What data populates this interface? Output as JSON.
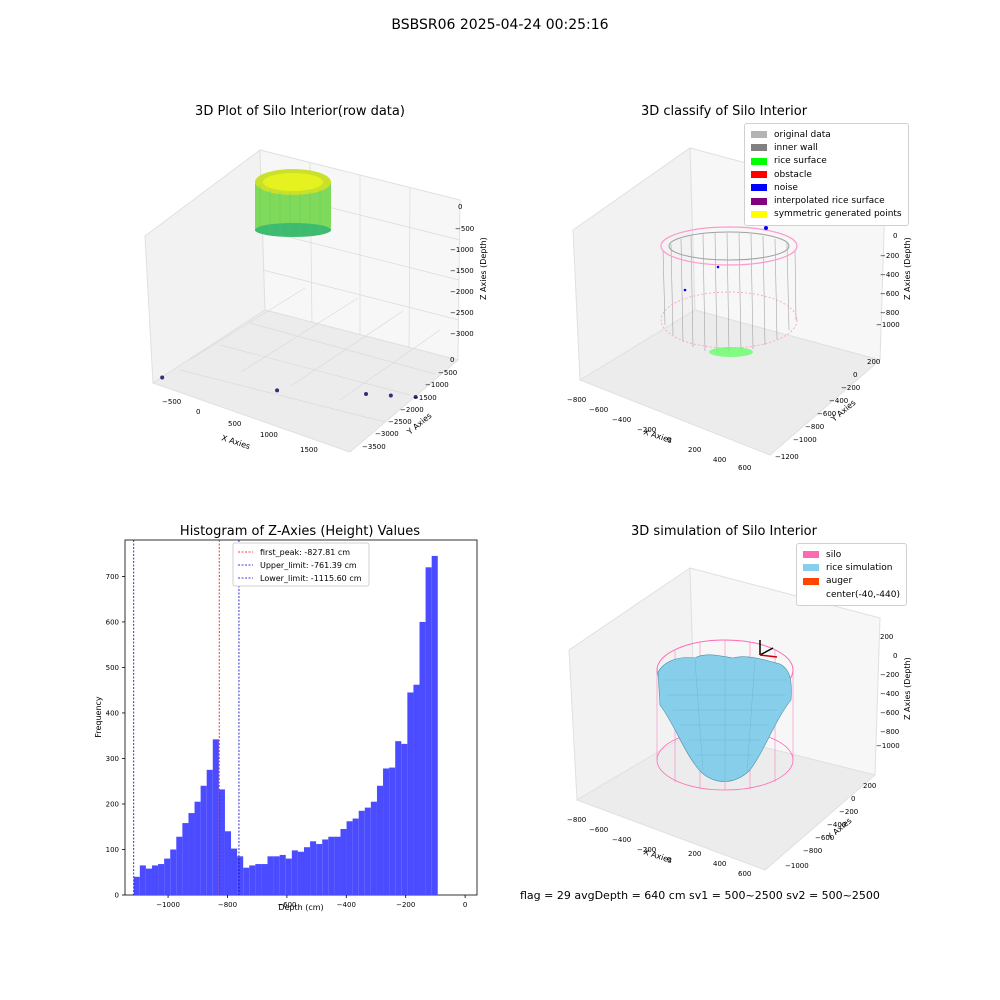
{
  "suptitle": "BSBSR06 2025-04-24 00:25:16",
  "colors": {
    "hist_bar": "#4b4bff",
    "peak_line": "#ff0000",
    "limit_line": "#0000cc",
    "grid": "#d9d9d9",
    "pane": "#f2f2f2"
  },
  "chart_data": [
    {
      "type": "scatter",
      "title": "3D Plot of Silo Interior(row data)",
      "xlabel": "X Axies",
      "ylabel": "Y Axies",
      "zlabel": "Z Axies (Depth)",
      "x_ticks": [
        "−500",
        "0",
        "500",
        "1000",
        "1500"
      ],
      "y_ticks": [
        "0",
        "−500",
        "−1000",
        "−1500",
        "−2000",
        "−2500",
        "−3000",
        "−3500"
      ],
      "z_ticks": [
        "0",
        "−500",
        "−1000",
        "−1500",
        "−2000",
        "−2500",
        "−3000"
      ],
      "points": [
        {
          "x": -590,
          "y": -300,
          "z": -3050
        },
        {
          "x": 400,
          "y": -1250,
          "z": -3050
        },
        {
          "x": 1100,
          "y": -2200,
          "z": -3050
        },
        {
          "x": 1300,
          "y": -2450,
          "z": -3050
        },
        {
          "x": 1500,
          "y": -2700,
          "z": -3050
        }
      ],
      "colormap": "viridis"
    },
    {
      "type": "scatter",
      "title": "3D classify of Silo Interior",
      "xlabel": "X Axies",
      "ylabel": "Y Axies",
      "zlabel": "Z Axies (Depth)",
      "x_ticks": [
        "−800",
        "−600",
        "−400",
        "−200",
        "0",
        "200",
        "400",
        "600"
      ],
      "y_ticks": [
        "200",
        "0",
        "−200",
        "−400",
        "−600",
        "−800",
        "−1000",
        "−1200"
      ],
      "z_ticks": [
        "200",
        "0",
        "−200",
        "−400",
        "−600",
        "−800",
        "−1000"
      ],
      "legend": [
        {
          "label": "original data",
          "color": "#b3b3b3"
        },
        {
          "label": "inner wall",
          "color": "#808080"
        },
        {
          "label": "rice surface",
          "color": "#00ff00"
        },
        {
          "label": "obstacle",
          "color": "#ff0000"
        },
        {
          "label": "noise",
          "color": "#0000ff"
        },
        {
          "label": "interpolated rice surface",
          "color": "#800080"
        },
        {
          "label": "symmetric generated points",
          "color": "#ffff00"
        }
      ]
    },
    {
      "type": "bar",
      "title": "Histogram of Z-Axies (Height) Values",
      "xlabel": "Depth (cm)",
      "ylabel": "Frequency",
      "xlim": [
        -1145,
        40
      ],
      "ylim": [
        0,
        780
      ],
      "x_ticks": [
        -1000,
        -800,
        -600,
        -400,
        -200,
        0
      ],
      "y_ticks": [
        0,
        100,
        200,
        300,
        400,
        500,
        600,
        700
      ],
      "bin_start": -1115.6,
      "bin_width": 20.47,
      "values": [
        40,
        65,
        58,
        65,
        68,
        80,
        100,
        128,
        158,
        180,
        205,
        240,
        275,
        342,
        232,
        140,
        102,
        85,
        60,
        65,
        68,
        68,
        85,
        85,
        88,
        80,
        98,
        95,
        105,
        118,
        112,
        122,
        128,
        128,
        145,
        162,
        168,
        185,
        192,
        205,
        240,
        278,
        280,
        338,
        332,
        445,
        462,
        600,
        720,
        745
      ],
      "vlines": [
        {
          "label": "first_peak: -827.81 cm",
          "x": -827.81,
          "color": "#ff0000"
        },
        {
          "label": "Upper_limit: -761.39 cm",
          "x": -761.39,
          "color": "#0000cc"
        },
        {
          "label": "Lower_limit: -1115.60 cm",
          "x": -1115.6,
          "color": "#0000cc"
        }
      ]
    },
    {
      "type": "surface",
      "title": "3D simulation of Silo Interior",
      "xlabel": "X Axies",
      "ylabel": "Y Axies",
      "zlabel": "Z Axies (Depth)",
      "x_ticks": [
        "−800",
        "−600",
        "−400",
        "−200",
        "0",
        "200",
        "400",
        "600"
      ],
      "y_ticks": [
        "200",
        "0",
        "−200",
        "−400",
        "−600",
        "−800",
        "−1000"
      ],
      "z_ticks": [
        "200",
        "0",
        "−200",
        "−400",
        "−600",
        "−800",
        "−1000"
      ],
      "legend": [
        {
          "label": "silo",
          "color": "#ff69b4"
        },
        {
          "label": "rice simulation",
          "color": "#87ceeb"
        },
        {
          "label": "auger",
          "color": "#ff4500"
        },
        {
          "label": "center(-40,-440)",
          "color": ""
        }
      ]
    }
  ],
  "footer": "flag = 29  avgDepth = 640 cm  sv1 = 500~2500  sv2 = 500~2500"
}
